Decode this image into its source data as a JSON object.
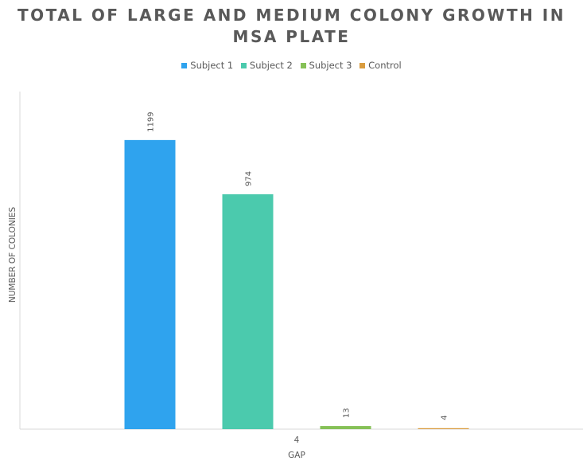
{
  "chart_data": {
    "type": "bar",
    "title": "TOTAL OF LARGE AND MEDIUM COLONY GROWTH IN MSA PLATE",
    "title_lines": [
      "TOTAL OF LARGE AND MEDIUM COLONY GROWTH IN",
      "MSA PLATE"
    ],
    "xlabel": "GAP",
    "ylabel": "NUMBER OF COLONIES",
    "categories": [
      "4"
    ],
    "series": [
      {
        "name": "Subject 1",
        "values": [
          1199
        ],
        "color": "#2FA3EE"
      },
      {
        "name": "Subject 2",
        "values": [
          974
        ],
        "color": "#4BCAAD"
      },
      {
        "name": "Subject 3",
        "values": [
          13
        ],
        "color": "#86C157"
      },
      {
        "name": "Control",
        "values": [
          4
        ],
        "color": "#D99C3F"
      }
    ],
    "ylim": [
      0,
      1400
    ],
    "grid": false,
    "legend": "top-center",
    "data_labels": true
  }
}
